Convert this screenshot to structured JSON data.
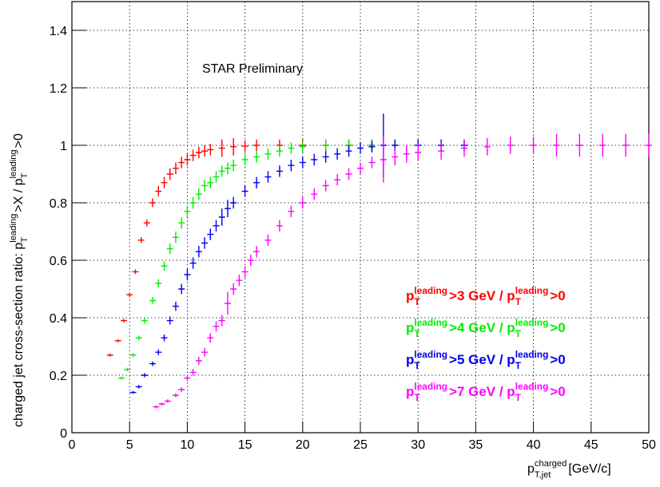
{
  "chart_data": {
    "type": "errorbar",
    "annotation": "STAR Preliminary",
    "y_label": [
      "charged jet cross-section ratio: p",
      "T",
      "leading",
      ">X / p",
      "T",
      "leading",
      ">0"
    ],
    "x_label": [
      "p",
      "T,jet",
      "charged",
      "[GeV/c]"
    ],
    "xlim": [
      0,
      50
    ],
    "ylim": [
      0,
      1.5
    ],
    "xticks": [
      0,
      5,
      10,
      15,
      20,
      25,
      30,
      35,
      40,
      45,
      50
    ],
    "yticks": [
      0,
      0.2,
      0.4,
      0.6,
      0.8,
      1,
      1.2,
      1.4
    ],
    "grid": true,
    "legend": "lower right",
    "series": [
      {
        "name": [
          "p",
          "T",
          "leading",
          ">3 GeV / p",
          "T",
          "leading",
          ">0"
        ],
        "color": "#ff0000",
        "x": [
          3.3,
          4,
          4.5,
          5,
          5.5,
          6,
          6.5,
          7,
          7.5,
          8,
          8.5,
          9,
          9.5,
          10,
          10.5,
          11,
          11.5,
          12,
          13,
          14,
          15,
          16,
          18,
          20,
          22,
          24,
          26
        ],
        "values": [
          0.27,
          0.32,
          0.39,
          0.48,
          0.56,
          0.67,
          0.73,
          0.8,
          0.84,
          0.87,
          0.9,
          0.92,
          0.94,
          0.95,
          0.965,
          0.975,
          0.98,
          0.985,
          0.99,
          0.995,
          0.997,
          1,
          1,
          1,
          1,
          1,
          1
        ],
        "errors": [
          0.005,
          0.005,
          0.006,
          0.007,
          0.008,
          0.01,
          0.012,
          0.015,
          0.018,
          0.02,
          0.02,
          0.02,
          0.02,
          0.02,
          0.02,
          0.02,
          0.02,
          0.02,
          0.03,
          0.03,
          0.02,
          0.02,
          0.02,
          0.02,
          0.02,
          0.02,
          0.02
        ]
      },
      {
        "name": [
          "p",
          "T",
          "leading",
          ">4 GeV / p",
          "T",
          "leading",
          ">0"
        ],
        "color": "#00ee00",
        "x": [
          4.3,
          4.8,
          5.3,
          5.8,
          6.3,
          7,
          7.5,
          8,
          8.5,
          9,
          9.5,
          10,
          10.5,
          11,
          11.5,
          12,
          12.5,
          13,
          13.5,
          14,
          15,
          16,
          17,
          18,
          19,
          20,
          22,
          24,
          26,
          28
        ],
        "values": [
          0.19,
          0.22,
          0.27,
          0.33,
          0.39,
          0.46,
          0.52,
          0.58,
          0.64,
          0.68,
          0.73,
          0.77,
          0.8,
          0.83,
          0.86,
          0.87,
          0.89,
          0.91,
          0.92,
          0.93,
          0.95,
          0.96,
          0.97,
          0.98,
          0.99,
          0.995,
          1,
          1,
          1,
          1
        ],
        "errors": [
          0.005,
          0.006,
          0.007,
          0.008,
          0.01,
          0.012,
          0.014,
          0.016,
          0.018,
          0.02,
          0.02,
          0.02,
          0.02,
          0.02,
          0.02,
          0.02,
          0.02,
          0.02,
          0.02,
          0.02,
          0.02,
          0.02,
          0.02,
          0.02,
          0.02,
          0.02,
          0.02,
          0.02,
          0.02,
          0.02
        ]
      },
      {
        "name": [
          "p",
          "T",
          "leading",
          ">5 GeV / p",
          "T",
          "leading",
          ">0"
        ],
        "color": "#0000ee",
        "x": [
          5.3,
          5.8,
          6.3,
          7,
          7.5,
          8,
          8.5,
          9,
          9.5,
          10,
          10.5,
          11,
          11.5,
          12,
          12.5,
          13,
          13.5,
          14,
          15,
          16,
          17,
          18,
          19,
          20,
          21,
          22,
          23,
          24,
          25,
          26,
          27,
          28,
          30,
          32,
          34
        ],
        "values": [
          0.14,
          0.16,
          0.2,
          0.24,
          0.28,
          0.33,
          0.39,
          0.44,
          0.5,
          0.55,
          0.59,
          0.63,
          0.66,
          0.69,
          0.72,
          0.75,
          0.78,
          0.8,
          0.84,
          0.87,
          0.89,
          0.91,
          0.93,
          0.94,
          0.95,
          0.96,
          0.97,
          0.98,
          0.99,
          0.995,
          1,
          1,
          1,
          1,
          1
        ],
        "errors": [
          0.005,
          0.006,
          0.007,
          0.008,
          0.01,
          0.012,
          0.014,
          0.016,
          0.018,
          0.02,
          0.02,
          0.02,
          0.02,
          0.02,
          0.02,
          0.03,
          0.03,
          0.02,
          0.02,
          0.02,
          0.02,
          0.02,
          0.02,
          0.02,
          0.02,
          0.02,
          0.02,
          0.02,
          0.02,
          0.02,
          0.11,
          0.02,
          0.02,
          0.02,
          0.02
        ]
      },
      {
        "name": [
          "p",
          "T",
          "leading",
          ">7 GeV / p",
          "T",
          "leading",
          ">0"
        ],
        "color": "#ff00ff",
        "x": [
          7.3,
          7.8,
          8.3,
          9,
          9.5,
          10,
          10.5,
          11,
          11.5,
          12,
          12.5,
          13,
          13.5,
          14,
          14.5,
          15,
          15.5,
          16,
          17,
          18,
          19,
          20,
          21,
          22,
          23,
          24,
          25,
          26,
          27,
          28,
          29,
          30,
          32,
          34,
          36,
          38,
          40,
          42,
          44,
          46,
          48,
          50
        ],
        "values": [
          0.09,
          0.1,
          0.11,
          0.13,
          0.15,
          0.19,
          0.21,
          0.25,
          0.28,
          0.33,
          0.37,
          0.39,
          0.45,
          0.5,
          0.53,
          0.56,
          0.6,
          0.63,
          0.67,
          0.72,
          0.77,
          0.8,
          0.83,
          0.86,
          0.88,
          0.9,
          0.92,
          0.94,
          0.95,
          0.96,
          0.97,
          0.975,
          0.98,
          0.99,
          0.995,
          1,
          1,
          1,
          1,
          1,
          1,
          1
        ],
        "errors": [
          0.005,
          0.005,
          0.006,
          0.007,
          0.008,
          0.01,
          0.012,
          0.014,
          0.015,
          0.016,
          0.018,
          0.02,
          0.04,
          0.02,
          0.02,
          0.02,
          0.02,
          0.02,
          0.02,
          0.02,
          0.02,
          0.02,
          0.02,
          0.02,
          0.02,
          0.02,
          0.02,
          0.02,
          0.08,
          0.03,
          0.03,
          0.03,
          0.03,
          0.03,
          0.03,
          0.03,
          0.03,
          0.04,
          0.04,
          0.04,
          0.04,
          0.04
        ]
      }
    ]
  }
}
